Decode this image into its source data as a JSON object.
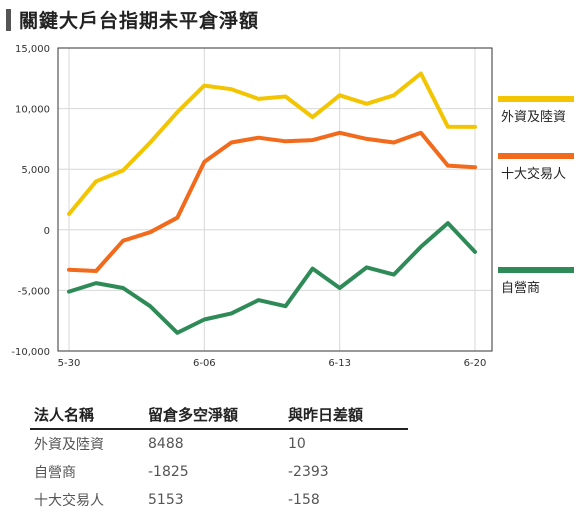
{
  "title": "關鍵大戶台指期未平倉淨額",
  "colors": {
    "foreign": "#f2c500",
    "dealer": "#2e8b57",
    "top10": "#f26a1b",
    "accent": "#555555"
  },
  "chart_data": {
    "type": "line",
    "x_ticks": [
      "5-30",
      "6-06",
      "6-13",
      "6-20"
    ],
    "y_ticks": [
      "15,000",
      "10,000",
      "5,000",
      "0",
      "-5,000",
      "-10,000"
    ],
    "ylim": [
      -10000,
      15000
    ],
    "grid": true,
    "legend_position": "right",
    "x": [
      "5-30",
      "5-31",
      "6-01",
      "6-02",
      "6-05",
      "6-06",
      "6-07",
      "6-08",
      "6-09",
      "6-12",
      "6-13",
      "6-14",
      "6-15",
      "6-16",
      "6-19",
      "6-20"
    ],
    "series": [
      {
        "name": "外資及陸資",
        "color_key": "foreign",
        "values": [
          1300,
          4000,
          4900,
          7200,
          9700,
          11900,
          11600,
          10800,
          11000,
          9300,
          11100,
          10400,
          11100,
          12900,
          8500,
          8488
        ]
      },
      {
        "name": "十大交易人",
        "color_key": "top10",
        "values": [
          -3300,
          -3400,
          -900,
          -200,
          1000,
          5600,
          7200,
          7600,
          7300,
          7400,
          8000,
          7500,
          7200,
          8000,
          5300,
          5153
        ]
      },
      {
        "name": "自營商",
        "color_key": "dealer",
        "values": [
          -5100,
          -4400,
          -4800,
          -6300,
          -8500,
          -7400,
          -6900,
          -5800,
          -6300,
          -3200,
          -4800,
          -3100,
          -3700,
          -1400,
          550,
          -1825
        ]
      }
    ]
  },
  "table": {
    "headers": [
      "法人名稱",
      "留倉多空淨額",
      "與昨日差額"
    ],
    "rows": [
      [
        "外資及陸資",
        "8488",
        "10"
      ],
      [
        "自營商",
        "-1825",
        "-2393"
      ],
      [
        "十大交易人",
        "5153",
        "-158"
      ]
    ]
  }
}
